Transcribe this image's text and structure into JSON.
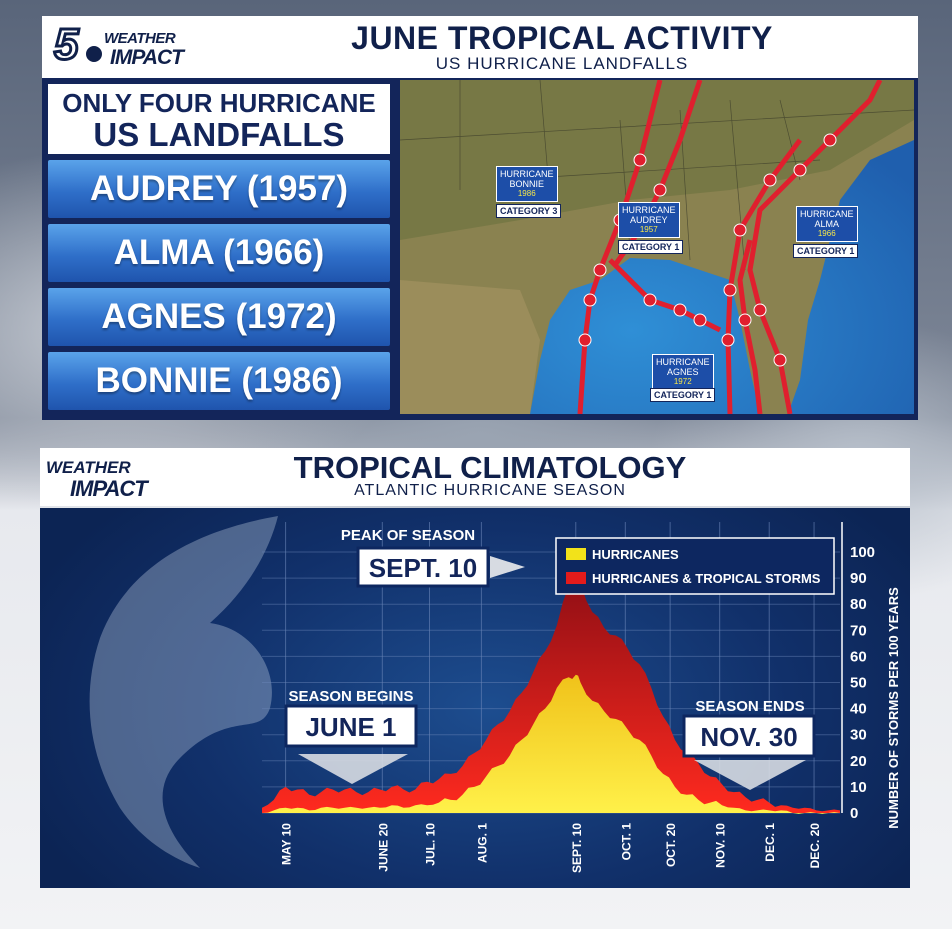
{
  "top": {
    "logo": {
      "number": "5",
      "weather": "WEATHER",
      "impact": "IMPACT"
    },
    "title": "JUNE TROPICAL ACTIVITY",
    "subtitle": "US HURRICANE LANDFALLS",
    "list_heading": [
      "ONLY FOUR HURRICANE",
      "US LANDFALLS"
    ],
    "storms": [
      "AUDREY (1957)",
      "ALMA (1966)",
      "AGNES (1972)",
      "BONNIE (1986)"
    ],
    "map_labels": [
      {
        "name": "HURRICANE",
        "storm": "BONNIE",
        "year": "1986",
        "category": "CATEGORY 3"
      },
      {
        "name": "HURRICANE",
        "storm": "AUDREY",
        "year": "1957",
        "category": "CATEGORY 1"
      },
      {
        "name": "HURRICANE",
        "storm": "ALMA",
        "year": "1966",
        "category": "CATEGORY 1"
      },
      {
        "name": "HURRICANE",
        "storm": "AGNES",
        "year": "1972",
        "category": "CATEGORY 1"
      }
    ],
    "colors": {
      "track": "#e01f2e",
      "panel": "#13255a",
      "button": "#2f6fc9"
    }
  },
  "bottom": {
    "logo": {
      "weather": "WEATHER",
      "impact": "IMPACT"
    },
    "title": "TROPICAL CLIMATOLOGY",
    "subtitle": "ATLANTIC HURRICANE SEASON"
  },
  "chart_data": {
    "type": "area",
    "title": "",
    "xlabel": "",
    "ylabel": "NUMBER OF STORMS PER 100 YEARS",
    "ylim": [
      0,
      100
    ],
    "yticks": [
      0,
      10,
      20,
      30,
      40,
      50,
      60,
      70,
      80,
      90,
      100
    ],
    "x_tick_labels": [
      "MAY 10",
      "JUNE 20",
      "JUL. 10",
      "AUG. 1",
      "SEPT. 10",
      "OCT. 1",
      "OCT. 20",
      "NOV. 10",
      "DEC. 1",
      "DEC. 20"
    ],
    "x_tick_day": [
      130,
      171,
      191,
      213,
      253,
      274,
      293,
      314,
      335,
      354
    ],
    "x_range_day": [
      120,
      365
    ],
    "legend": {
      "placement": "top-right",
      "entries": [
        "HURRICANES",
        "HURRICANES & TROPICAL STORMS"
      ]
    },
    "grid": true,
    "series": [
      {
        "name": "HURRICANES & TROPICAL STORMS",
        "color": "#e41b1b",
        "x": [
          120,
          125,
          130,
          135,
          140,
          145,
          150,
          155,
          160,
          165,
          170,
          175,
          180,
          185,
          190,
          195,
          200,
          205,
          210,
          215,
          220,
          225,
          230,
          235,
          240,
          245,
          250,
          253,
          255,
          260,
          265,
          270,
          275,
          280,
          285,
          290,
          295,
          300,
          305,
          310,
          315,
          320,
          325,
          330,
          335,
          340,
          345,
          350,
          355,
          360,
          365
        ],
        "y": [
          2,
          5,
          10,
          9,
          7,
          8,
          9,
          9,
          8,
          8,
          9,
          10,
          9,
          9,
          12,
          13,
          15,
          18,
          23,
          28,
          34,
          39,
          46,
          54,
          62,
          72,
          87,
          95,
          88,
          77,
          71,
          68,
          63,
          57,
          48,
          37,
          28,
          23,
          19,
          14,
          11,
          8,
          6,
          5,
          4,
          3,
          2,
          2,
          1,
          1,
          1
        ]
      },
      {
        "name": "HURRICANES",
        "color": "#f2e21a",
        "x": [
          120,
          125,
          130,
          135,
          140,
          145,
          150,
          155,
          160,
          165,
          170,
          175,
          180,
          185,
          190,
          195,
          200,
          205,
          210,
          215,
          220,
          225,
          230,
          235,
          240,
          245,
          250,
          253,
          255,
          260,
          265,
          270,
          275,
          280,
          285,
          290,
          295,
          300,
          305,
          310,
          315,
          320,
          325,
          330,
          335,
          340,
          345,
          350,
          355,
          360,
          365
        ],
        "y": [
          0,
          1,
          2,
          2,
          1,
          2,
          2,
          2,
          2,
          2,
          2,
          3,
          2,
          3,
          3,
          4,
          5,
          7,
          10,
          14,
          18,
          22,
          28,
          34,
          40,
          48,
          52,
          53,
          50,
          43,
          39,
          36,
          32,
          28,
          22,
          15,
          10,
          7,
          5,
          4,
          3,
          2,
          1,
          1,
          1,
          1,
          0,
          0,
          0,
          0,
          0
        ]
      }
    ],
    "annotations": [
      {
        "label": "PEAK OF SEASON",
        "value": "SEPT. 10"
      },
      {
        "label": "SEASON BEGINS",
        "value": "JUNE 1"
      },
      {
        "label": "SEASON ENDS",
        "value": "NOV. 30"
      }
    ]
  }
}
